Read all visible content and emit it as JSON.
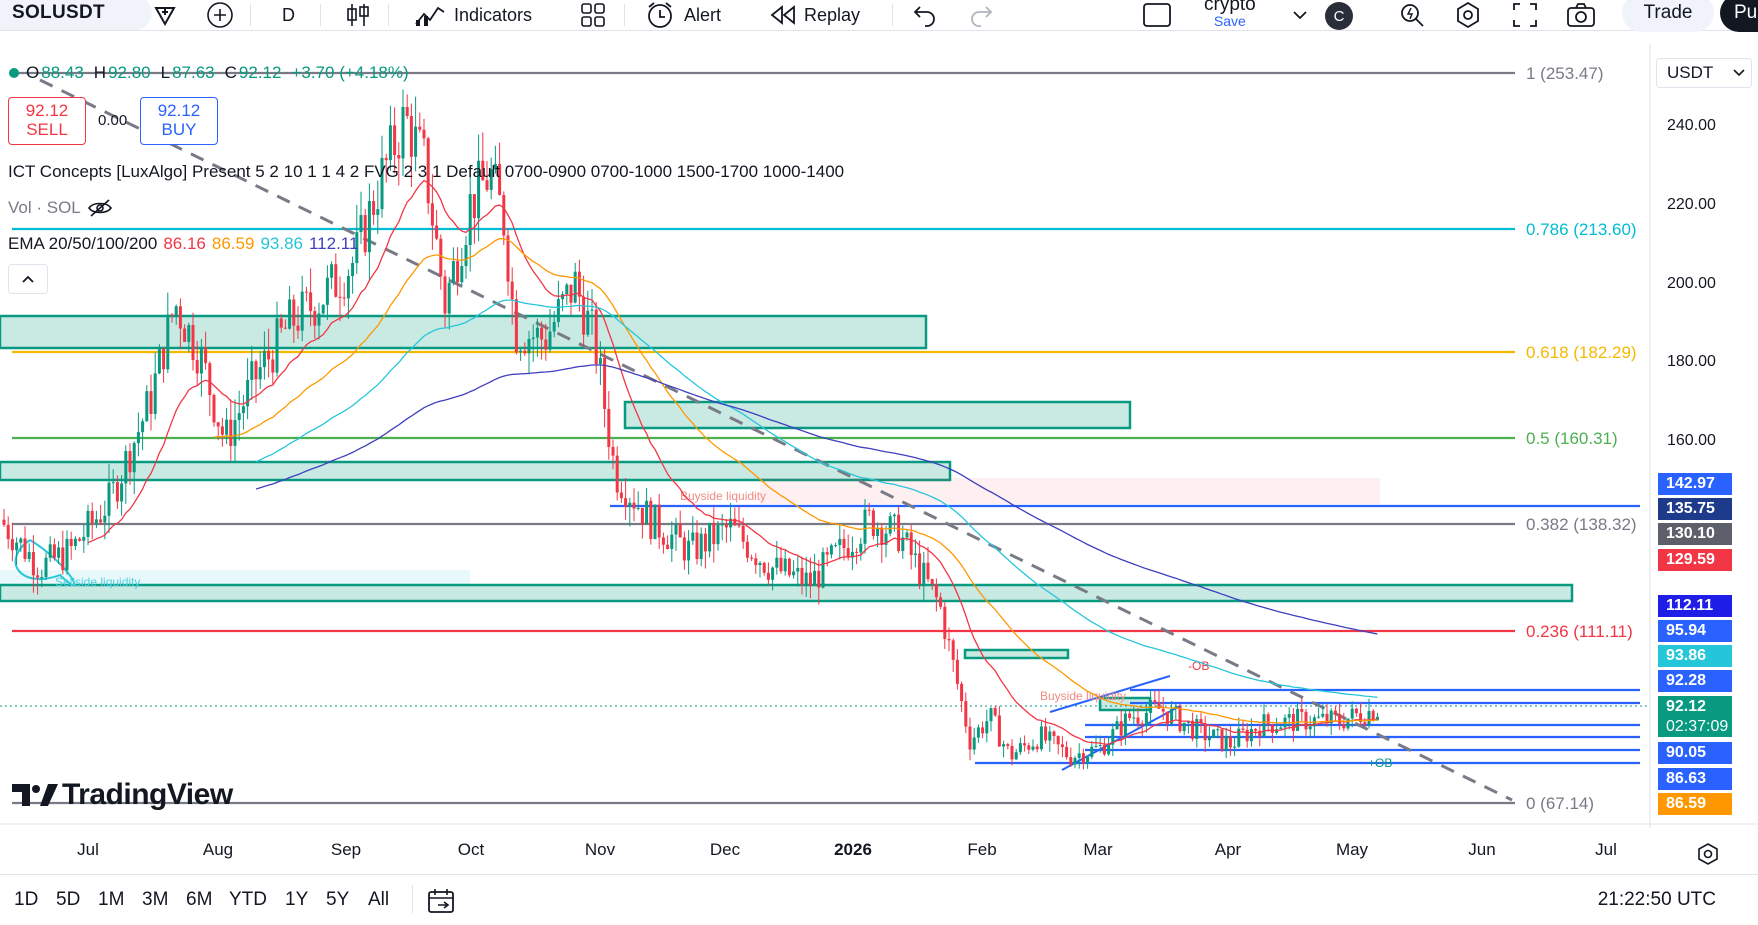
{
  "toolbar": {
    "symbol": "SOLUSDT",
    "interval": "D",
    "indicators_label": "Indicators",
    "alert_label": "Alert",
    "replay_label": "Replay",
    "layout_name": "crypto",
    "layout_save": "Save",
    "avatar_letter": "C",
    "trade_label": "Trade",
    "publish_label": "Pu"
  },
  "legend": {
    "ohlc": {
      "o_label": "O",
      "o": "88.43",
      "h_label": "H",
      "h": "92.80",
      "l_label": "L",
      "l": "87.63",
      "c_label": "C",
      "c": "92.12",
      "change": "+3.70 (+4.18%)"
    },
    "sell_price": "92.12",
    "sell_label": "SELL",
    "spread": "0.00",
    "buy_price": "92.12",
    "buy_label": "BUY",
    "indicator_1": "ICT Concepts [LuxAlgo] Present 5 2 10 1 1 4 2 FVG 2 3 1 Default 0700-0900 0700-1000 1500-1700 1000-1400",
    "indicator_2": "Vol · SOL",
    "ema_label": "EMA 20/50/100/200",
    "ema_values": [
      "86.16",
      "86.59",
      "93.86",
      "112.11"
    ],
    "colors": {
      "ema20": "#f23645",
      "ema50": "#ff9800",
      "ema100": "#26c6da",
      "ema200": "#3f3fbf",
      "up": "#089981",
      "down": "#f23645"
    }
  },
  "price_axis": {
    "currency": "USDT",
    "ticks": [
      "240.00",
      "220.00",
      "200.00",
      "180.00",
      "160.00"
    ],
    "tags": [
      {
        "text": "142.97",
        "color": "#2962ff"
      },
      {
        "text": "135.75",
        "color": "#1e3a8a"
      },
      {
        "text": "130.10",
        "color": "#5d606b"
      },
      {
        "text": "129.59",
        "color": "#f23645"
      },
      {
        "text": "112.11",
        "color": "#1e1ee6"
      },
      {
        "text": "95.94",
        "color": "#2962ff"
      },
      {
        "text": "93.86",
        "color": "#26c6da"
      },
      {
        "text": "92.28",
        "color": "#2962ff"
      },
      {
        "text": "92.12",
        "color": "#089981"
      },
      {
        "text": "02:37:09",
        "color": "#089981"
      },
      {
        "text": "90.05",
        "color": "#2962ff"
      },
      {
        "text": "86.63",
        "color": "#2962ff"
      },
      {
        "text": "86.59",
        "color": "#ff9800"
      }
    ]
  },
  "fib_levels": [
    {
      "label": "1 (253.47)",
      "color": "#787b86"
    },
    {
      "label": "0.786 (213.60)",
      "color": "#00bcd4"
    },
    {
      "label": "0.618 (182.29)",
      "color": "#f5b800"
    },
    {
      "label": "0.5 (160.31)",
      "color": "#4caf50"
    },
    {
      "label": "0.382 (138.32)",
      "color": "#787b86"
    },
    {
      "label": "0.236 (111.11)",
      "color": "#f23645"
    },
    {
      "label": "0 (67.14)",
      "color": "#787b86"
    }
  ],
  "annotations": {
    "buyside_1": "Buyside liquidity",
    "buyside_2": "Buyside liquidity",
    "sellside": "Sellside liquidity",
    "ob_top": "-OB",
    "ob_bottom": "+OB"
  },
  "time_axis": [
    "Jul",
    "Aug",
    "Sep",
    "Oct",
    "Nov",
    "Dec",
    "2026",
    "Feb",
    "Mar",
    "Apr",
    "May",
    "Jun",
    "Jul"
  ],
  "watermark": "TradingView",
  "bottom": {
    "ranges": [
      "1D",
      "5D",
      "1M",
      "3M",
      "6M",
      "YTD",
      "1Y",
      "5Y",
      "All"
    ],
    "clock": "21:22:50 UTC"
  }
}
